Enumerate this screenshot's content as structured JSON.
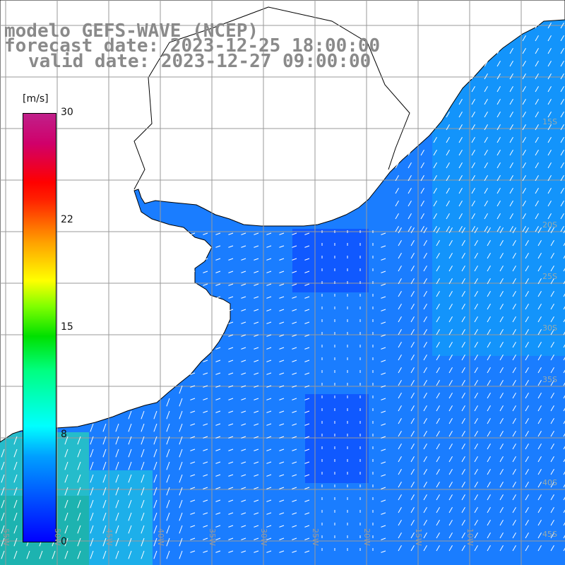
{
  "title": {
    "line1": "modelo GEFS-WAVE (NCEP)",
    "line2": "forecast date: 2023-12-25 18:00:00",
    "line3": "valid date: 2023-12-27 09:00:00"
  },
  "colorbar": {
    "unit": "m/s",
    "ticks": [
      {
        "label": "30",
        "value": 30
      },
      {
        "label": "22",
        "value": 22
      },
      {
        "label": "15",
        "value": 15
      },
      {
        "label": "8",
        "value": 8
      },
      {
        "label": "0",
        "value": 0
      }
    ],
    "colors": [
      "#0000ff",
      "#00ffff",
      "#00e000",
      "#ffff00",
      "#ff0000",
      "#c0208a"
    ]
  },
  "map": {
    "lon_labels": [
      "55W",
      "50W",
      "45W",
      "40W",
      "35W",
      "30W",
      "25W",
      "20W",
      "15W",
      "10W"
    ],
    "lat_labels": [
      "15S",
      "20S",
      "25S",
      "30S",
      "35S",
      "40S",
      "45S"
    ],
    "land_color": "#ffffff",
    "grid_color": "#9a9a9a"
  }
}
